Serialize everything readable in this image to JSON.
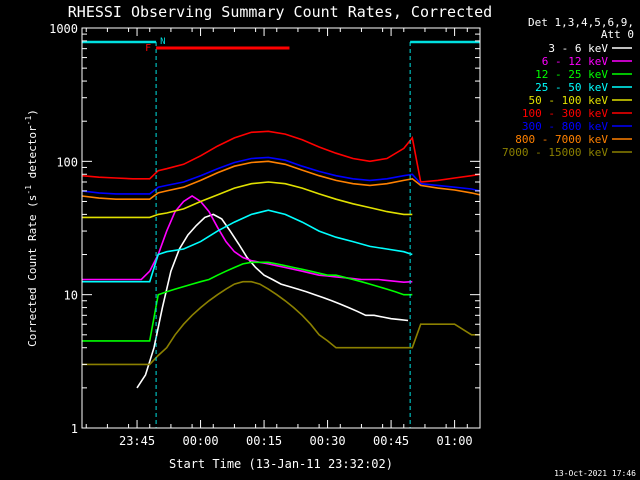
{
  "colors": {
    "background": "#000000",
    "axes": "#ffffff",
    "night": "#00e0e0",
    "flag_f": "#ff0000",
    "flag_n": "#00e0e0"
  },
  "chart_data": {
    "type": "line",
    "title": "RHESSI Observing Summary Count Rates, Corrected",
    "xlabel": "Start Time (13-Jan-11 23:32:02)",
    "ylabel_main": "Corrected Count Rate (s",
    "ylabel_sup1": "-1",
    "ylabel_mid": " detector",
    "ylabel_sup2": "-1",
    "ylabel_end": ")",
    "yscale": "log",
    "ylim": [
      1,
      1000
    ],
    "x_units": "minutes after 23:32:02",
    "xlim": [
      0,
      94
    ],
    "x_ticks": [
      {
        "label": "23:45",
        "x": 13
      },
      {
        "label": "00:00",
        "x": 28
      },
      {
        "label": "00:15",
        "x": 43
      },
      {
        "label": "00:30",
        "x": 58
      },
      {
        "label": "00:45",
        "x": 73
      },
      {
        "label": "01:00",
        "x": 88
      }
    ],
    "y_ticks": [
      {
        "label": "1",
        "v": 1
      },
      {
        "label": "10",
        "v": 10
      },
      {
        "label": "100",
        "v": 100
      },
      {
        "label": "1000",
        "v": 1000
      }
    ],
    "legend_header": [
      "Det 1,3,4,5,6,9,",
      "Att 0"
    ],
    "night_intervals": [
      [
        0,
        17.5
      ],
      [
        77.5,
        94
      ]
    ],
    "flags": [
      {
        "label": "F",
        "color": "#ff0000",
        "x0": 17.5,
        "x1": 49
      },
      {
        "label": "N",
        "color": "#00e0e0",
        "x0": 17.5,
        "x1": 17.5
      }
    ],
    "timestamp": "13-Oct-2021 17:46",
    "series": [
      {
        "name": "3 - 6 keV",
        "color": "#ffffff",
        "x": [
          13,
          15,
          17,
          19,
          21,
          23,
          25,
          27,
          29,
          31,
          33,
          35,
          37,
          39,
          41,
          43,
          45,
          47,
          49,
          51,
          53,
          55,
          57,
          59,
          61,
          63,
          65,
          67,
          69,
          71,
          73,
          75,
          77
        ],
        "y": [
          2.0,
          2.5,
          4.0,
          8.0,
          15,
          22,
          28,
          33,
          38,
          40,
          37,
          30,
          24,
          19,
          16,
          14,
          13,
          12,
          11.5,
          11,
          10.5,
          10,
          9.5,
          9,
          8.5,
          8,
          7.5,
          7,
          7,
          6.8,
          6.6,
          6.5,
          6.4
        ]
      },
      {
        "name": "6 - 12 keV",
        "color": "#ff00ff",
        "x": [
          0,
          4,
          8,
          12,
          14,
          16,
          18,
          20,
          22,
          24,
          26,
          28,
          30,
          32,
          34,
          36,
          38,
          40,
          42,
          44,
          46,
          48,
          50,
          52,
          54,
          56,
          58,
          60,
          62,
          64,
          66,
          68,
          70,
          72,
          74,
          76,
          78
        ],
        "y": [
          13,
          13,
          13,
          13,
          13,
          15,
          20,
          30,
          42,
          50,
          55,
          50,
          42,
          32,
          25,
          21,
          19,
          18,
          17.5,
          17,
          16.5,
          16,
          15.5,
          15,
          14.5,
          14,
          13.8,
          13.6,
          13.4,
          13.2,
          13,
          13,
          13,
          12.8,
          12.6,
          12.4,
          12.5
        ]
      },
      {
        "name": "12 - 25 keV",
        "color": "#00ff00",
        "x": [
          0,
          4,
          8,
          12,
          16,
          18,
          20,
          22,
          24,
          26,
          28,
          30,
          32,
          34,
          36,
          38,
          40,
          42,
          44,
          46,
          48,
          50,
          52,
          54,
          56,
          58,
          60,
          62,
          64,
          66,
          68,
          70,
          72,
          74,
          76,
          78
        ],
        "y": [
          4.5,
          4.5,
          4.5,
          4.5,
          4.5,
          10,
          10.5,
          11,
          11.5,
          12,
          12.5,
          13,
          14,
          15,
          16,
          17,
          17.5,
          17.5,
          17.5,
          17,
          16.5,
          16,
          15.5,
          15,
          14.5,
          14,
          14,
          13.5,
          13,
          12.5,
          12,
          11.5,
          11,
          10.5,
          10,
          10
        ]
      },
      {
        "name": "25 - 50 keV",
        "color": "#00ffff",
        "x": [
          0,
          4,
          8,
          12,
          16,
          18,
          20,
          24,
          28,
          32,
          36,
          40,
          44,
          48,
          52,
          56,
          60,
          64,
          68,
          72,
          76,
          78
        ],
        "y": [
          12.5,
          12.5,
          12.5,
          12.5,
          12.5,
          20,
          21,
          22,
          25,
          30,
          35,
          40,
          43,
          40,
          35,
          30,
          27,
          25,
          23,
          22,
          21,
          20
        ]
      },
      {
        "name": "50 - 100 keV",
        "color": "#e0e000",
        "x": [
          0,
          4,
          8,
          12,
          16,
          18,
          20,
          24,
          28,
          32,
          36,
          40,
          44,
          48,
          52,
          56,
          60,
          64,
          68,
          72,
          76,
          78
        ],
        "y": [
          38,
          38,
          38,
          38,
          38,
          40,
          41,
          44,
          50,
          56,
          63,
          68,
          70,
          68,
          63,
          57,
          52,
          48,
          45,
          42,
          40,
          40
        ]
      },
      {
        "name": "100 - 300 keV",
        "color": "#ff0000",
        "x": [
          0,
          4,
          8,
          12,
          16,
          18,
          20,
          24,
          28,
          32,
          36,
          40,
          44,
          48,
          52,
          56,
          60,
          64,
          68,
          72,
          76,
          78,
          80,
          84,
          88,
          92,
          94
        ],
        "y": [
          78,
          76,
          75,
          74,
          74,
          85,
          88,
          95,
          110,
          130,
          150,
          165,
          168,
          160,
          145,
          128,
          115,
          105,
          100,
          105,
          125,
          150,
          70,
          72,
          75,
          78,
          80
        ]
      },
      {
        "name": "300 - 800 keV",
        "color": "#0000ff",
        "x": [
          0,
          4,
          8,
          12,
          16,
          18,
          20,
          24,
          28,
          32,
          36,
          40,
          44,
          48,
          52,
          56,
          60,
          64,
          68,
          72,
          76,
          78,
          80,
          84,
          88,
          92,
          94
        ],
        "y": [
          60,
          58,
          57,
          57,
          57,
          64,
          66,
          70,
          78,
          88,
          98,
          105,
          107,
          102,
          92,
          84,
          78,
          74,
          72,
          74,
          78,
          80,
          68,
          66,
          64,
          62,
          60
        ]
      },
      {
        "name": "800 - 7000 keV",
        "color": "#ff8000",
        "x": [
          0,
          4,
          8,
          12,
          16,
          18,
          20,
          24,
          28,
          32,
          36,
          40,
          44,
          48,
          52,
          56,
          60,
          64,
          68,
          72,
          76,
          78,
          80,
          84,
          88,
          92,
          94
        ],
        "y": [
          55,
          53,
          52,
          52,
          52,
          58,
          60,
          64,
          72,
          82,
          92,
          98,
          100,
          95,
          86,
          78,
          72,
          68,
          66,
          68,
          72,
          74,
          66,
          63,
          61,
          58,
          56
        ]
      },
      {
        "name": "7000 - 15000 keV",
        "color": "#8b8000",
        "x": [
          0,
          4,
          8,
          12,
          14,
          16,
          18,
          20,
          22,
          24,
          26,
          28,
          30,
          32,
          34,
          36,
          38,
          40,
          42,
          44,
          46,
          48,
          50,
          52,
          54,
          56,
          58,
          60,
          62,
          64,
          66,
          68,
          70,
          72,
          74,
          76,
          78,
          80,
          84,
          88,
          92,
          94
        ],
        "y": [
          3,
          3,
          3,
          3,
          3,
          3,
          3.5,
          4,
          5,
          6,
          7,
          8,
          9,
          10,
          11,
          12,
          12.5,
          12.5,
          12,
          11,
          10,
          9,
          8,
          7,
          6,
          5,
          4.5,
          4,
          4,
          4,
          4,
          4,
          4,
          4,
          4,
          4,
          4,
          6,
          6,
          6,
          5,
          5
        ]
      }
    ]
  }
}
